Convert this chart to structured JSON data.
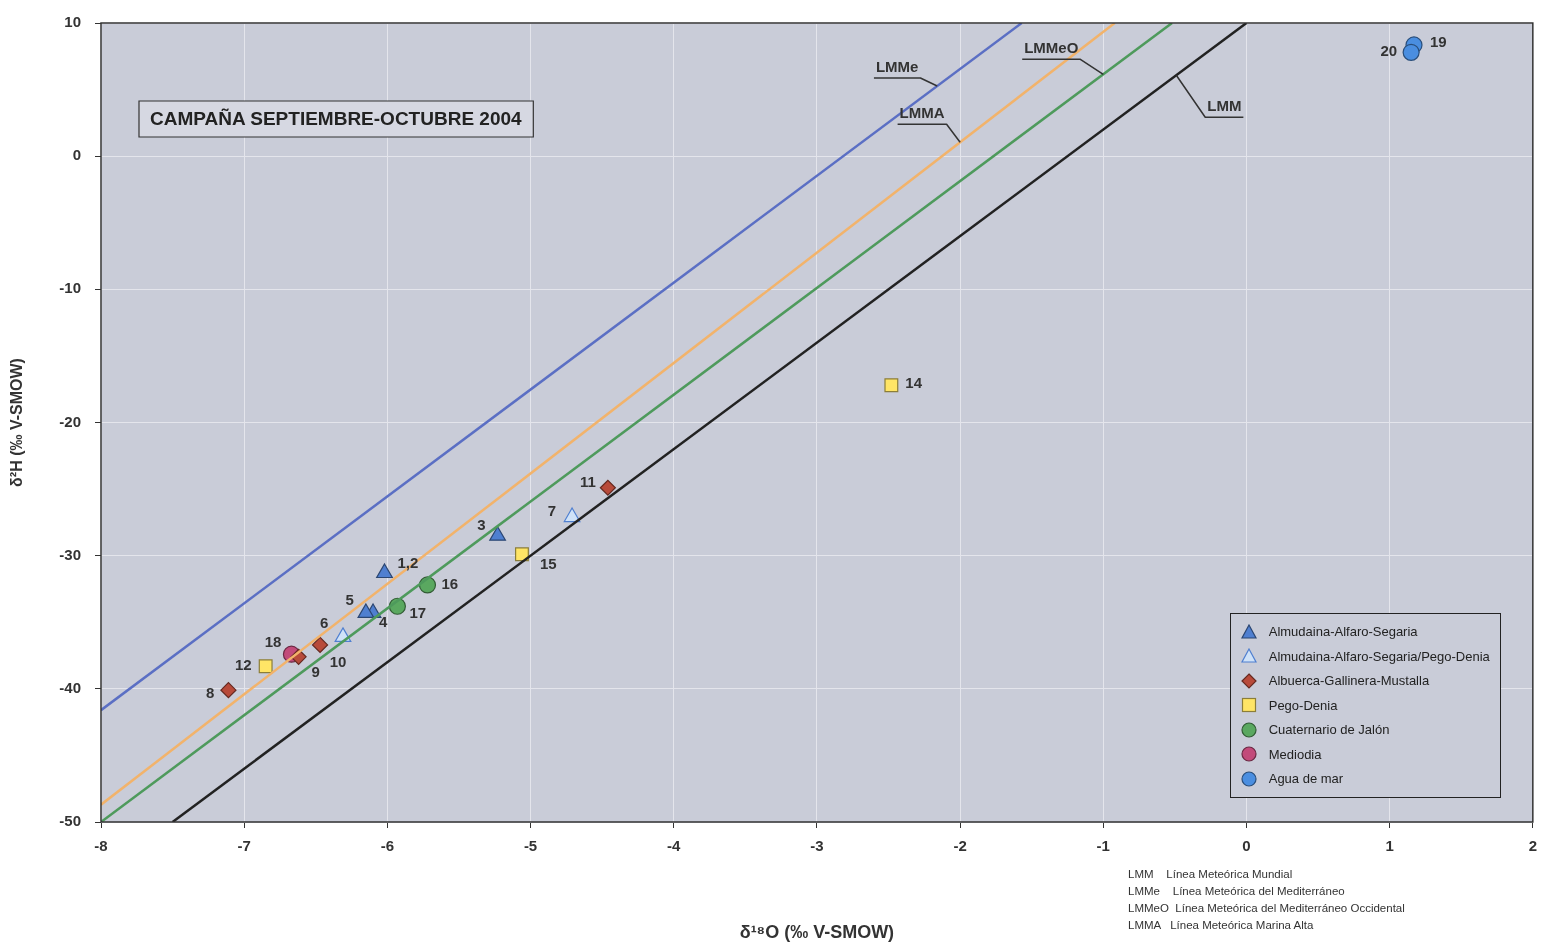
{
  "chart_data": {
    "type": "scatter",
    "title": "CAMPAÑA SEPTIEMBRE-OCTUBRE 2004",
    "xlabel": "δ¹⁸O (‰ V-SMOW)",
    "ylabel": "δ²H (‰ V-SMOW)",
    "xlim": [
      -8,
      2
    ],
    "xticks": [
      -8,
      -7,
      -6,
      -5,
      -4,
      -3,
      -2,
      -1,
      0,
      1,
      2
    ],
    "ylim": [
      -50,
      10
    ],
    "yticks": [
      -50,
      -40,
      -30,
      -20,
      -10,
      0,
      10
    ],
    "grid": true,
    "legend": "bottom right",
    "series": [
      {
        "type": "line",
        "color": "#5b6fc4",
        "marker": "none",
        "x": [
          -8,
          -1.57
        ],
        "values": [
          -41.6,
          10
        ]
      },
      {
        "type": "line",
        "color": "#f2b36b",
        "marker": "none",
        "x": [
          -8,
          -0.92
        ],
        "values": [
          -48.7,
          10
        ]
      },
      {
        "type": "line",
        "color": "#4e9a5c",
        "marker": "none",
        "x": [
          -8,
          -0.52
        ],
        "values": [
          -50,
          10
        ]
      },
      {
        "type": "line",
        "color": "#222222",
        "marker": "none",
        "x": [
          -7.5,
          0
        ],
        "values": [
          -50,
          10
        ]
      },
      {
        "name": "Almudaina-Alfaro-Segaria",
        "color": "#4f7fd0",
        "marker": "triangle",
        "x": [
          -6.02,
          null,
          -5.23,
          -6.1,
          -6.15
        ],
        "values": [
          -31.3,
          null,
          -28.5,
          -34.3,
          -34.3
        ]
      },
      {
        "name": "Almudaina-Alfaro-Segaria/Pego-Denia",
        "color": "#cfe2f8",
        "marker": "triangle",
        "x": [
          -4.71,
          -6.31
        ],
        "values": [
          -27.1,
          -36.1
        ]
      },
      {
        "name": "Albuerca-Gallinera-Mustalla",
        "color": "#b84a3a",
        "marker": "diamond",
        "x": [
          -6.47,
          -7.11,
          -6.62,
          -4.46
        ],
        "values": [
          -36.7,
          -40.1,
          -37.6,
          -24.9
        ]
      },
      {
        "name": "Pego-Denia",
        "color": "#ffe566",
        "marker": "square",
        "x": [
          -6.85,
          -2.48,
          -5.06
        ],
        "values": [
          -38.3,
          -17.2,
          -29.9
        ]
      },
      {
        "name": "Cuaternario de Jalón",
        "color": "#5aa860",
        "marker": "circle",
        "x": [
          -5.72,
          -5.93
        ],
        "values": [
          -32.2,
          -33.8
        ]
      },
      {
        "name": "Mediodia",
        "color": "#c24a7a",
        "marker": "circle",
        "x": [
          -6.67
        ],
        "values": [
          -37.4
        ]
      },
      {
        "name": "Agua de mar",
        "color": "#4a8ee0",
        "marker": "circle",
        "x": [
          1.17,
          1.15
        ],
        "values": [
          8.35,
          7.8
        ]
      }
    ],
    "annotations": [
      {
        "text": "1,2",
        "x": -6.02,
        "y": -31.3
      },
      {
        "text": "3",
        "x": -5.23,
        "y": -28.5
      },
      {
        "text": "4",
        "x": -6.1,
        "y": -34.3
      },
      {
        "text": "5",
        "x": -6.15,
        "y": -34.3
      },
      {
        "text": "6",
        "x": -6.47,
        "y": -36.7
      },
      {
        "text": "7",
        "x": -4.71,
        "y": -27.1
      },
      {
        "text": "8",
        "x": -7.11,
        "y": -40.1
      },
      {
        "text": "9",
        "x": -6.62,
        "y": -37.6
      },
      {
        "text": "10",
        "x": -6.31,
        "y": -36.1
      },
      {
        "text": "11",
        "x": -4.46,
        "y": -24.9
      },
      {
        "text": "12",
        "x": -6.85,
        "y": -38.3
      },
      {
        "text": "14",
        "x": -2.48,
        "y": -17.2
      },
      {
        "text": "15",
        "x": -5.06,
        "y": -29.9
      },
      {
        "text": "16",
        "x": -5.72,
        "y": -32.2
      },
      {
        "text": "17",
        "x": -5.93,
        "y": -33.8
      },
      {
        "text": "18",
        "x": -6.67,
        "y": -37.4
      },
      {
        "text": "19",
        "x": 1.17,
        "y": 8.35
      },
      {
        "text": "20",
        "x": 1.15,
        "y": 7.8
      },
      {
        "text": "LMMe",
        "x": -2.16,
        "y": 5.27
      },
      {
        "text": "LMMeO",
        "x": -1,
        "y": 6.15
      },
      {
        "text": "LMMA",
        "x": -2,
        "y": 1.05
      },
      {
        "text": "LMM",
        "x": -0.49,
        "y": 6.08
      },
      "LMM    Línea Meteórica Mundial",
      "LMMe    Línea Meteórica del Mediterráneo",
      "LMMeO  Línea Meteórica del Mediterráneo Occidental",
      "LMMA   Línea Meteórica Marina Alta"
    ]
  }
}
